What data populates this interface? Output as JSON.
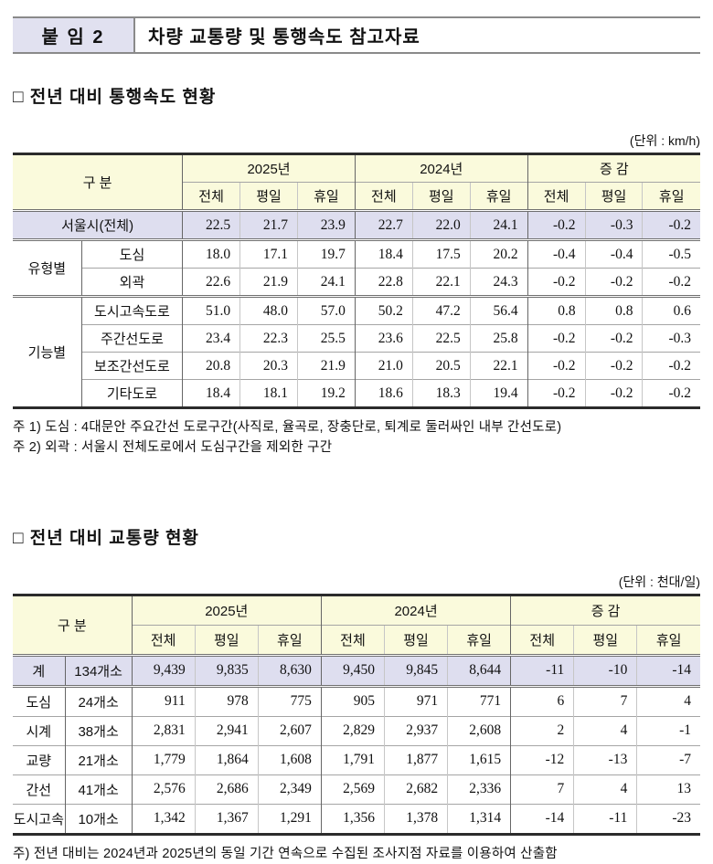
{
  "banner": {
    "attachment_label": "붙 임 2",
    "title": "차량 교통량 및 통행속도 참고자료"
  },
  "speed_section": {
    "title": "□ 전년 대비 통행속도 현황",
    "unit": "(단위 : km/h)",
    "table": {
      "corner_label": "구 분",
      "col_groups": [
        "2025년",
        "2024년",
        "증 감"
      ],
      "sub_headers": [
        "전체",
        "평일",
        "휴일"
      ],
      "rows": [
        {
          "cat": "서울시(전체)",
          "catspan": 2,
          "highlight": true,
          "sep": true,
          "values": [
            "22.5",
            "21.7",
            "23.9",
            "22.7",
            "22.0",
            "24.1",
            "-0.2",
            "-0.3",
            "-0.2"
          ]
        },
        {
          "cat": "유형별",
          "catrowspan": 2,
          "sub": "도심",
          "sep": true,
          "values": [
            "18.0",
            "17.1",
            "19.7",
            "18.4",
            "17.5",
            "20.2",
            "-0.4",
            "-0.4",
            "-0.5"
          ]
        },
        {
          "sub": "외곽",
          "values": [
            "22.6",
            "21.9",
            "24.1",
            "22.8",
            "22.1",
            "24.3",
            "-0.2",
            "-0.2",
            "-0.2"
          ]
        },
        {
          "cat": "기능별",
          "catrowspan": 4,
          "sub": "도시고속도로",
          "sep": true,
          "values": [
            "51.0",
            "48.0",
            "57.0",
            "50.2",
            "47.2",
            "56.4",
            "0.8",
            "0.8",
            "0.6"
          ]
        },
        {
          "sub": "주간선도로",
          "values": [
            "23.4",
            "22.3",
            "25.5",
            "23.6",
            "22.5",
            "25.8",
            "-0.2",
            "-0.2",
            "-0.3"
          ]
        },
        {
          "sub": "보조간선도로",
          "values": [
            "20.8",
            "20.3",
            "21.9",
            "21.0",
            "20.5",
            "22.1",
            "-0.2",
            "-0.2",
            "-0.2"
          ]
        },
        {
          "sub": "기타도로",
          "values": [
            "18.4",
            "18.1",
            "19.2",
            "18.6",
            "18.3",
            "19.4",
            "-0.2",
            "-0.2",
            "-0.2"
          ]
        }
      ]
    },
    "notes": [
      "주 1) 도심 : 4대문안 주요간선 도로구간(사직로, 율곡로, 장충단로, 퇴계로 둘러싸인 내부 간선도로)",
      "주 2) 외곽 : 서울시 전체도로에서 도심구간을 제외한 구간"
    ]
  },
  "volume_section": {
    "title": "□ 전년 대비 교통량 현황",
    "unit": "(단위 : 천대/일)",
    "table": {
      "corner_label": "구 분",
      "col_groups": [
        "2025년",
        "2024년",
        "증 감"
      ],
      "sub_headers": [
        "전체",
        "평일",
        "휴일"
      ],
      "rows": [
        {
          "cat": "계",
          "sub": "134개소",
          "highlight": true,
          "sep": true,
          "values": [
            "9,439",
            "9,835",
            "8,630",
            "9,450",
            "9,845",
            "8,644",
            "-11",
            "-10",
            "-14"
          ]
        },
        {
          "cat": "도심",
          "sub": "24개소",
          "sep": true,
          "values": [
            "911",
            "978",
            "775",
            "905",
            "971",
            "771",
            "6",
            "7",
            "4"
          ]
        },
        {
          "cat": "시계",
          "sub": "38개소",
          "values": [
            "2,831",
            "2,941",
            "2,607",
            "2,829",
            "2,937",
            "2,608",
            "2",
            "4",
            "-1"
          ]
        },
        {
          "cat": "교량",
          "sub": "21개소",
          "values": [
            "1,779",
            "1,864",
            "1,608",
            "1,791",
            "1,877",
            "1,615",
            "-12",
            "-13",
            "-7"
          ]
        },
        {
          "cat": "간선",
          "sub": "41개소",
          "values": [
            "2,576",
            "2,686",
            "2,349",
            "2,569",
            "2,682",
            "2,336",
            "7",
            "4",
            "13"
          ]
        },
        {
          "cat": "도시고속",
          "sub": "10개소",
          "values": [
            "1,342",
            "1,367",
            "1,291",
            "1,356",
            "1,378",
            "1,314",
            "-14",
            "-11",
            "-23"
          ]
        }
      ]
    },
    "notes": [
      "주) 전년 대비는 2024년과 2025년의 동일 기간 연속으로 수집된 조사지점 자료를 이용하여 산출함"
    ]
  },
  "colors": {
    "header_fill": "#fafadc",
    "highlight_fill": "#dedeef",
    "banner_label_fill": "#e1e1f0"
  }
}
